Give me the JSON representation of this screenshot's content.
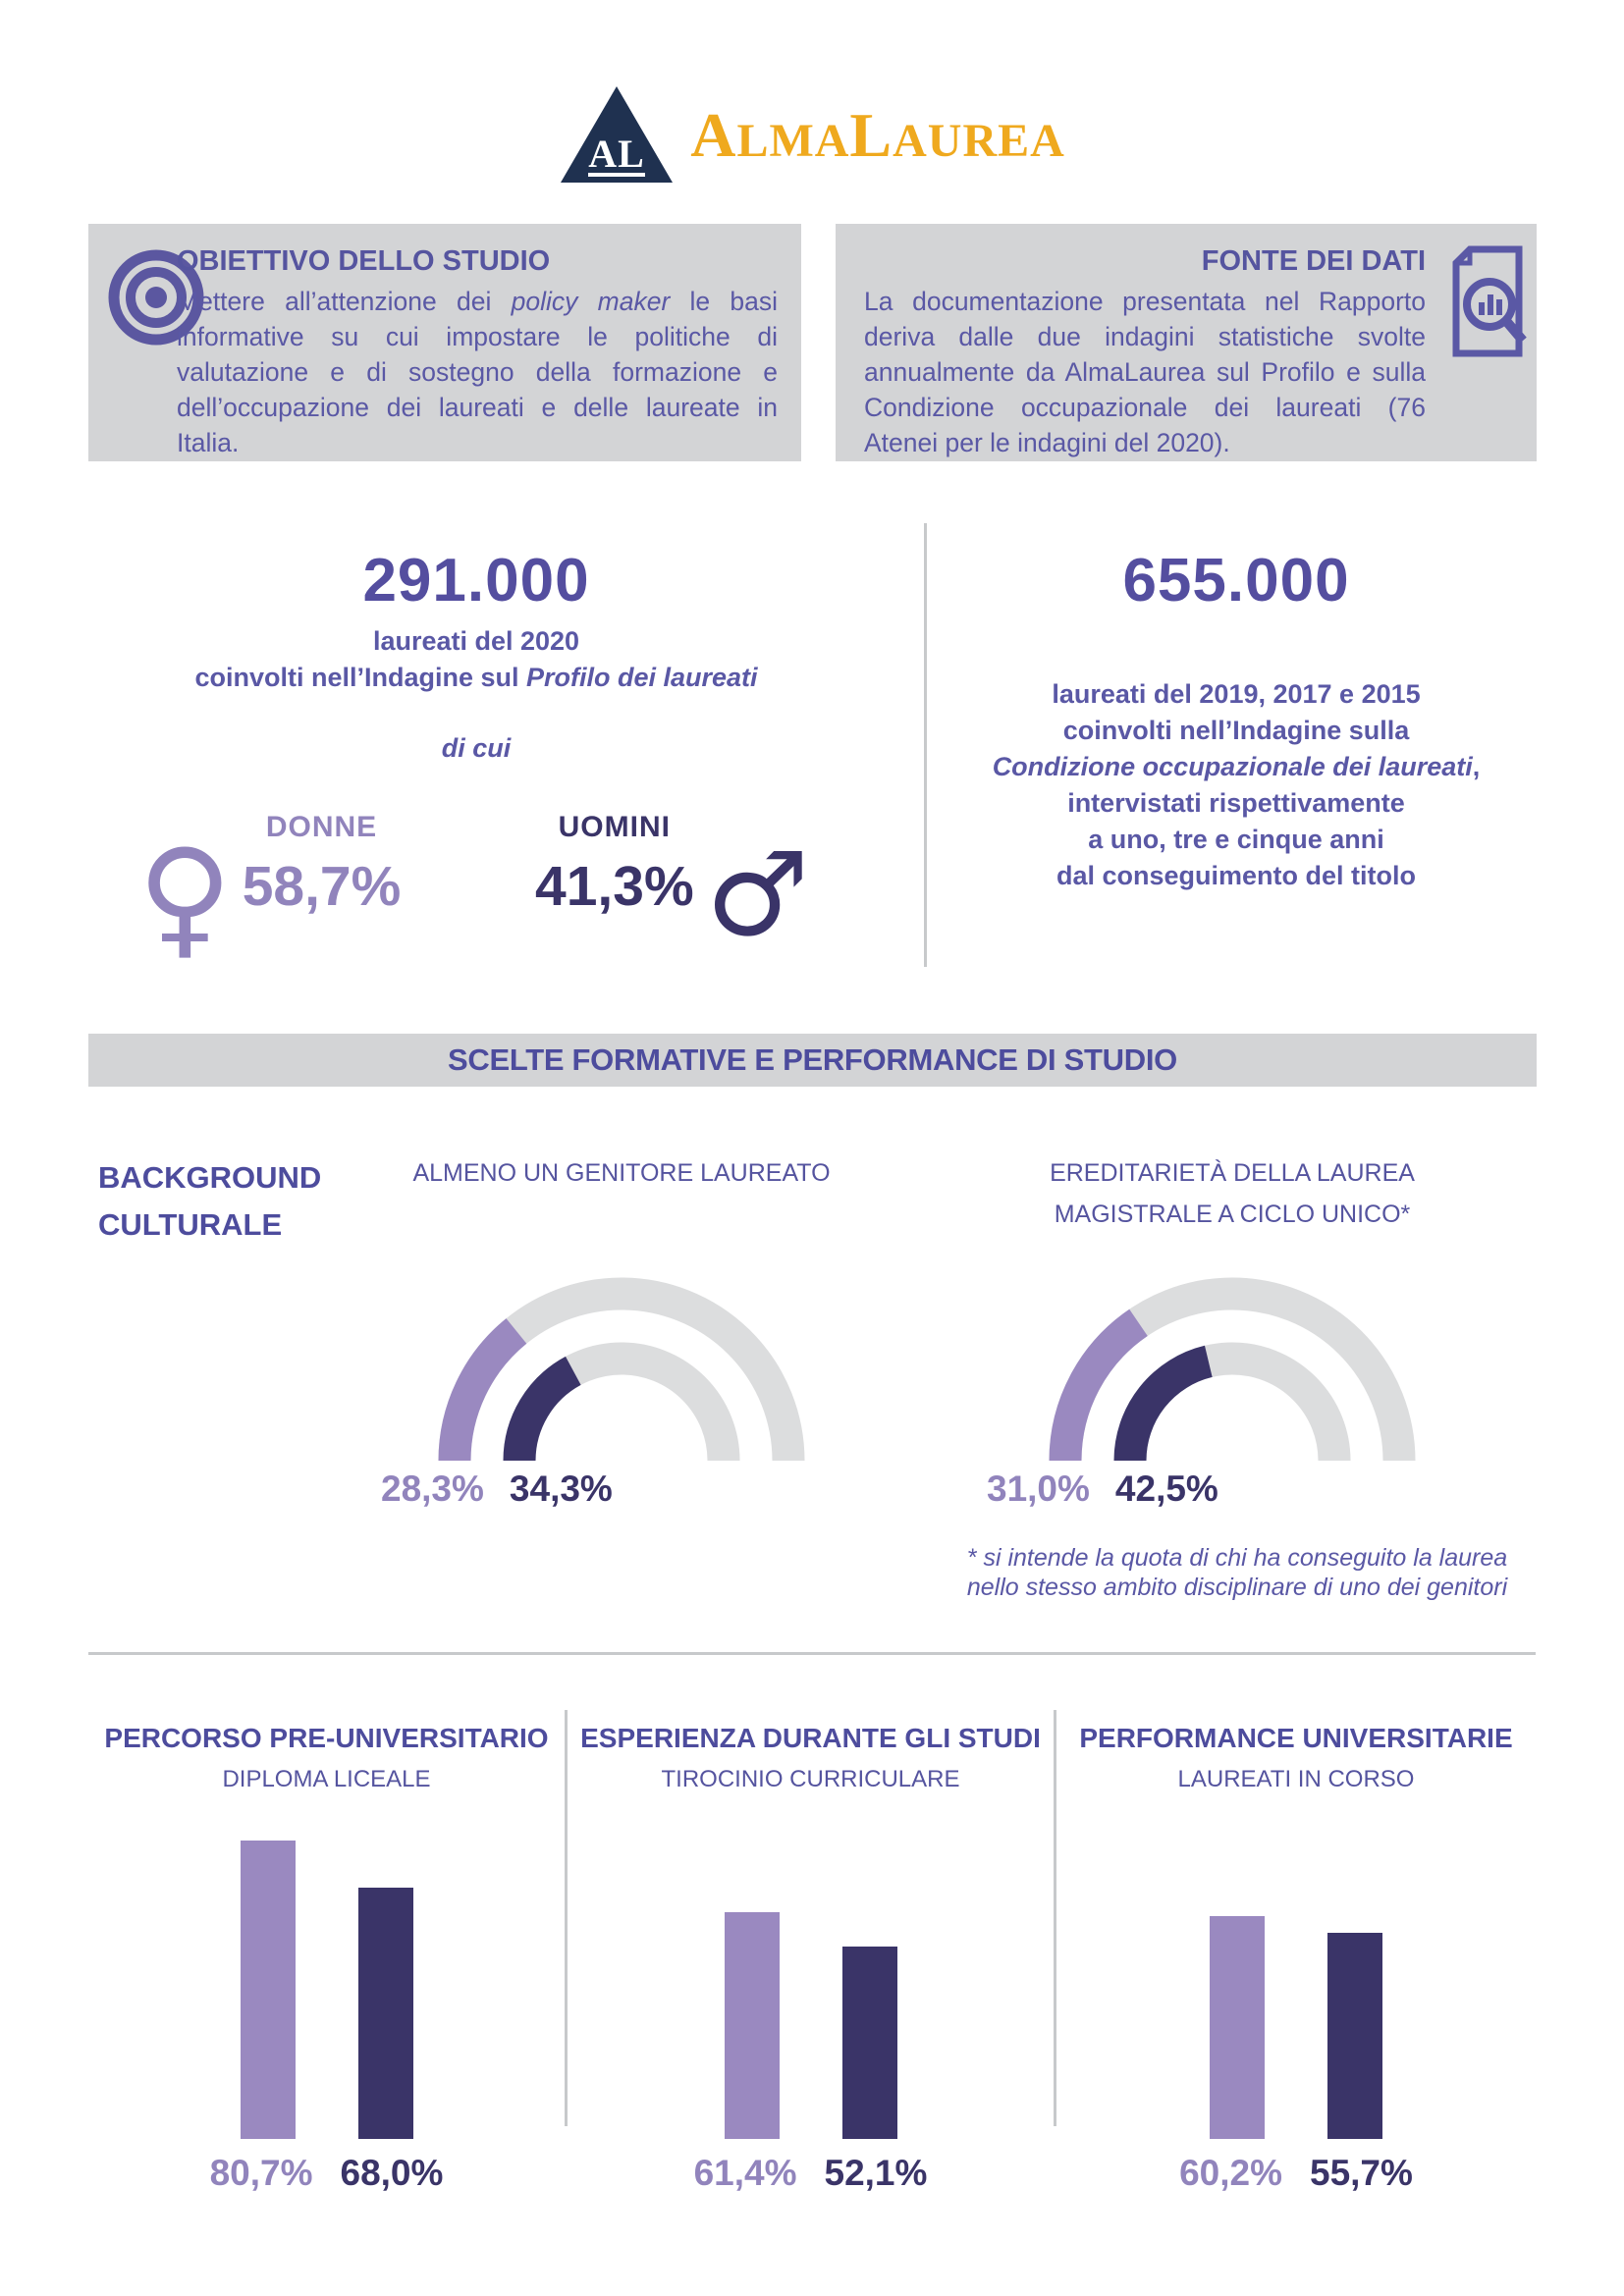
{
  "colors": {
    "accent_light": "#9a89c0",
    "accent_dark": "#3a3468",
    "text_purple": "#5a58a5",
    "heading_purple": "#4d4c9d",
    "box_gray": "#d3d4d6",
    "track_gray": "#dcddde",
    "logo_gold": "#efa91e",
    "logo_navy": "#1f3150"
  },
  "logo": {
    "mark": "AL",
    "caps1": "A",
    "rest1": "LMA",
    "caps2": "L",
    "rest2": "AUREA"
  },
  "objective_box": {
    "title": "OBIETTIVO DELLO STUDIO",
    "body_pre": "Mettere all’attenzione dei ",
    "body_italic": "policy maker",
    "body_post": " le basi informative su cui impostare le politiche  di valutazione e di sostegno della formazione e dell’occupazione dei laureati e delle laureate in Italia."
  },
  "source_box": {
    "title": "FONTE DEI DATI",
    "body": "La documentazione presentata nel Rapporto deriva dalle due indagini statistiche svolte annualmente da AlmaLaurea sul Profilo e sulla Condizione occupazionale dei laureati (76 Atenei per le indagini del 2020)."
  },
  "profile_stat": {
    "number": "291.000",
    "line1": "laureati del 2020",
    "line2_pre": "coinvolti nell’Indagine sul ",
    "line2_italic": "Profilo dei laureati",
    "di_cui": "di cui",
    "women_label": "DONNE",
    "women_value": "58,7%",
    "men_label": "UOMINI",
    "men_value": "41,3%",
    "female_icon": "♀",
    "male_icon": "♂"
  },
  "occupation_stat": {
    "number": "655.000",
    "line1": "laureati del 2019, 2017 e 2015",
    "line2": "coinvolti nell’Indagine sulla",
    "line3_italic": "Condizione occupazionale dei laureati",
    "line3_post": ",",
    "line4": "intervistati rispettivamente",
    "line5": "a uno, tre e cinque anni",
    "line6": "dal conseguimento del titolo"
  },
  "section_banner": "SCELTE FORMATIVE E PERFORMANCE DI STUDIO",
  "background_label": {
    "line1": "BACKGROUND",
    "line2": "CULTURALE"
  },
  "gauges": [
    {
      "title_line1": "ALMENO UN GENITORE LAUREATO",
      "title_line2": "",
      "values": [
        "28,3%",
        "34,3%"
      ]
    },
    {
      "title_line1": "EREDITARIETÀ DELLA LAUREA",
      "title_line2": "MAGISTRALE A CICLO UNICO*",
      "values": [
        "31,0%",
        "42,5%"
      ]
    }
  ],
  "footnote": {
    "line1": "* si intende la quota di chi ha conseguito la laurea",
    "line2": "nello stesso ambito disciplinare di uno dei genitori"
  },
  "bottom_sections": [
    {
      "title": "PERCORSO PRE-UNIVERSITARIO",
      "subtitle": "DIPLOMA LICEALE",
      "values": [
        "80,7%",
        "68,0%"
      ]
    },
    {
      "title": "ESPERIENZA DURANTE GLI STUDI",
      "subtitle": "TIROCINIO CURRICULARE",
      "values": [
        "61,4%",
        "52,1%"
      ]
    },
    {
      "title": "PERFORMANCE UNIVERSITARIE",
      "subtitle": "LAUREATI IN CORSO",
      "values": [
        "60,2%",
        "55,7%"
      ]
    }
  ],
  "chart_data": [
    {
      "type": "donut",
      "variant": "semicircle-gauge",
      "title": "ALMENO UN GENITORE LAUREATO",
      "series": [
        {
          "name": "donne",
          "value": 28.3
        },
        {
          "name": "uomini",
          "value": 34.3
        }
      ],
      "unit": "%",
      "legend_position": "below-left"
    },
    {
      "type": "donut",
      "variant": "semicircle-gauge",
      "title": "EREDITARIETÀ DELLA LAUREA MAGISTRALE A CICLO UNICO*",
      "series": [
        {
          "name": "donne",
          "value": 31.0
        },
        {
          "name": "uomini",
          "value": 42.5
        }
      ],
      "unit": "%",
      "legend_position": "below-left"
    },
    {
      "type": "bar",
      "title": "PERCORSO PRE-UNIVERSITARIO - DIPLOMA LICEALE",
      "categories": [
        "donne",
        "uomini"
      ],
      "values": [
        80.7,
        68.0
      ],
      "unit": "%",
      "ylim": [
        0,
        100
      ]
    },
    {
      "type": "bar",
      "title": "ESPERIENZA DURANTE GLI STUDI - TIROCINIO CURRICULARE",
      "categories": [
        "donne",
        "uomini"
      ],
      "values": [
        61.4,
        52.1
      ],
      "unit": "%",
      "ylim": [
        0,
        100
      ]
    },
    {
      "type": "bar",
      "title": "PERFORMANCE UNIVERSITARIE - LAUREATI IN CORSO",
      "categories": [
        "donne",
        "uomini"
      ],
      "values": [
        60.2,
        55.7
      ],
      "unit": "%",
      "ylim": [
        0,
        100
      ]
    }
  ]
}
